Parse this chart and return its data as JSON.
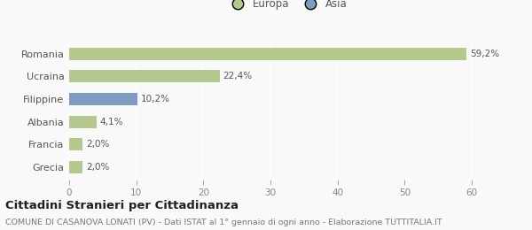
{
  "categories": [
    "Romania",
    "Ucraina",
    "Filippine",
    "Albania",
    "Francia",
    "Grecia"
  ],
  "values": [
    59.2,
    22.4,
    10.2,
    4.1,
    2.0,
    2.0
  ],
  "labels": [
    "59,2%",
    "22,4%",
    "10,2%",
    "4,1%",
    "2,0%",
    "2,0%"
  ],
  "colors": [
    "#b5c98e",
    "#b5c98e",
    "#7b9cbf",
    "#b5c98e",
    "#b5c98e",
    "#b5c98e"
  ],
  "legend_items": [
    "Europa",
    "Asia"
  ],
  "legend_colors": [
    "#b5c98e",
    "#7b9cbf"
  ],
  "xlim": [
    0,
    65
  ],
  "xticks": [
    0,
    10,
    20,
    30,
    40,
    50,
    60
  ],
  "title": "Cittadini Stranieri per Cittadinanza",
  "subtitle": "COMUNE DI CASANOVA LONATI (PV) - Dati ISTAT al 1° gennaio di ogni anno - Elaborazione TUTTITALIA.IT",
  "bg_color": "#f9f9f9",
  "title_fontsize": 9.5,
  "subtitle_fontsize": 6.8,
  "label_fontsize": 7.5,
  "ytick_fontsize": 8,
  "xtick_fontsize": 7.5
}
